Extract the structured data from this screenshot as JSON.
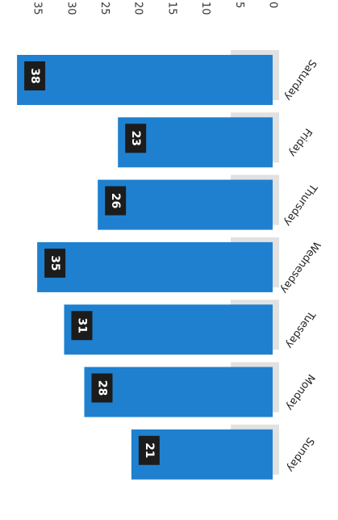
{
  "chart_data": {
    "type": "bar",
    "orientation": "horizontal",
    "categories": [
      "Saturday",
      "Friday",
      "Thursday",
      "Wednesday",
      "Tuesday",
      "Monday",
      "Sunday"
    ],
    "values": [
      38,
      23,
      26,
      35,
      31,
      28,
      21
    ],
    "data_labels": [
      "38",
      "23",
      "26",
      "35",
      "31",
      "28",
      "21"
    ],
    "xlim": [
      0,
      35
    ],
    "ticks": [
      "35",
      "30",
      "25",
      "20",
      "15",
      "10",
      "5",
      "0"
    ],
    "tick_values": [
      35,
      30,
      25,
      20,
      15,
      10,
      5,
      0
    ],
    "grid": false,
    "legend": "none",
    "colors": {
      "bar": "#1f80cf",
      "bar_shadow": "#a9a9a9",
      "label_box": "#1c1c1c",
      "label_text": "#ffffff",
      "axis_text": "#333333"
    }
  }
}
